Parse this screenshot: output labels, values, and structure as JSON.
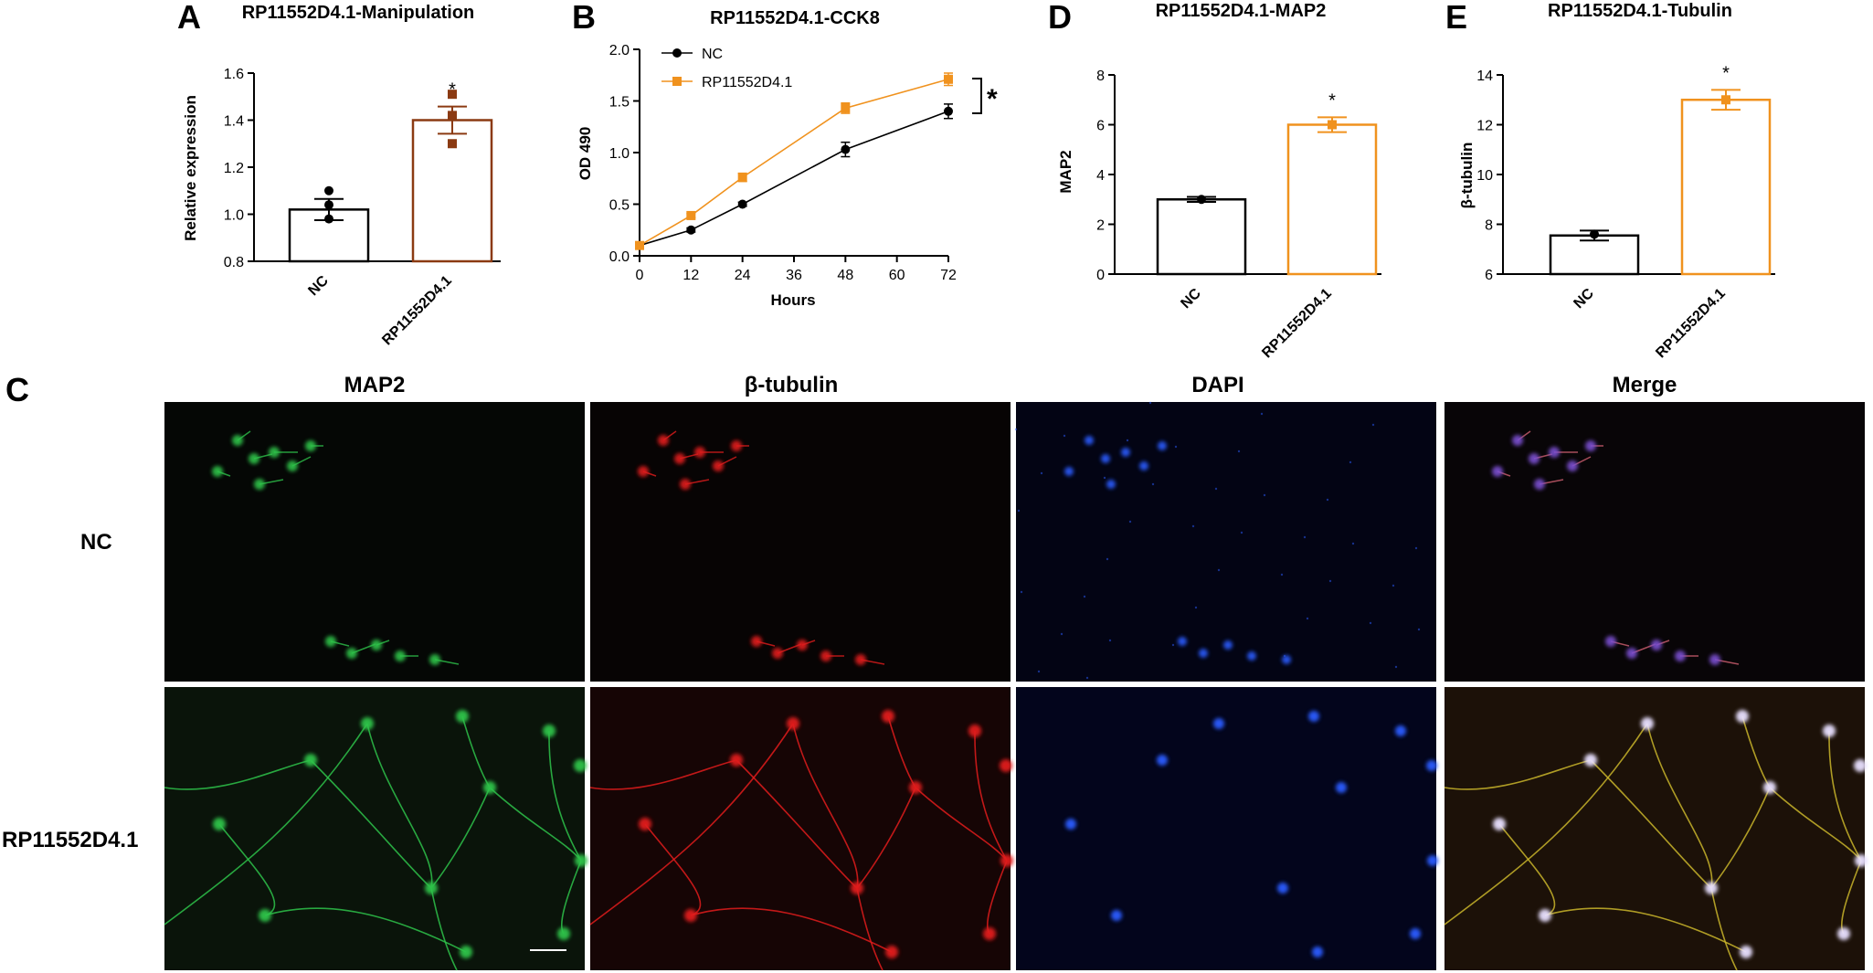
{
  "panel_letters": [
    "A",
    "B",
    "D",
    "E",
    "C"
  ],
  "colors": {
    "nc": "#000000",
    "rp_brown": "#8b3a12",
    "rp_orange": "#f0921e",
    "map2_green": "#2ec24a",
    "tubulin_red": "#e01c1c",
    "dapi_blue": "#2a5cff",
    "merge_yellow": "#c9b52a"
  },
  "chart_data": [
    {
      "id": "A",
      "type": "bar",
      "title": "RP11552D4.1-Manipulation",
      "ylabel": "Relative expression",
      "xlabel": "",
      "categories": [
        "NC",
        "RP11552D4.1"
      ],
      "values": [
        1.02,
        1.4
      ],
      "errors": [
        0.045,
        0.058
      ],
      "points": [
        [
          1.1,
          1.04,
          0.98
        ],
        [
          1.51,
          1.42,
          1.3
        ]
      ],
      "ylim": [
        0.8,
        1.6
      ],
      "yticks": [
        "0.8",
        "1.0",
        "1.2",
        "1.4",
        "1.6"
      ],
      "significance": [
        "",
        "*"
      ]
    },
    {
      "id": "B",
      "type": "line",
      "title": "RP11552D4.1-CCK8",
      "xlabel": "Hours",
      "ylabel": "OD 490",
      "x": [
        0,
        12,
        24,
        48,
        72
      ],
      "xticks": [
        "0",
        "12",
        "24",
        "36",
        "48",
        "60",
        "72"
      ],
      "ylim": [
        0.0,
        2.0
      ],
      "yticks": [
        "0.0",
        "0.5",
        "1.0",
        "1.5",
        "2.0"
      ],
      "legend_position": "top-left",
      "series": [
        {
          "name": "NC",
          "values": [
            0.1,
            0.25,
            0.5,
            1.03,
            1.4
          ],
          "errors": [
            0.01,
            0.02,
            0.02,
            0.07,
            0.07
          ]
        },
        {
          "name": "RP11552D4.1",
          "values": [
            0.1,
            0.39,
            0.76,
            1.43,
            1.71
          ],
          "errors": [
            0.01,
            0.02,
            0.04,
            0.05,
            0.06
          ]
        }
      ],
      "significance": "*"
    },
    {
      "id": "D",
      "type": "bar",
      "title": "RP11552D4.1-MAP2",
      "ylabel": "MAP2",
      "xlabel": "",
      "categories": [
        "NC",
        "RP11552D4.1"
      ],
      "values": [
        3.0,
        6.0
      ],
      "errors": [
        0.1,
        0.3
      ],
      "points": [
        [
          3.0
        ],
        [
          6.0
        ]
      ],
      "ylim": [
        0,
        8
      ],
      "yticks": [
        "0",
        "2",
        "4",
        "6",
        "8"
      ],
      "significance": [
        "",
        "*"
      ]
    },
    {
      "id": "E",
      "type": "bar",
      "title": "RP11552D4.1-Tubulin",
      "ylabel": "β-tubulin",
      "xlabel": "",
      "categories": [
        "NC",
        "RP11552D4.1"
      ],
      "values": [
        7.55,
        13.0
      ],
      "errors": [
        0.2,
        0.4
      ],
      "points": [
        [
          7.6
        ],
        [
          13.0
        ]
      ],
      "ylim": [
        6,
        14
      ],
      "yticks": [
        "6",
        "8",
        "10",
        "12",
        "14"
      ],
      "significance": [
        "",
        "*"
      ]
    }
  ],
  "micrographs": {
    "columns": [
      "MAP2",
      "β-tubulin",
      "DAPI",
      "Merge"
    ],
    "rows": [
      "NC",
      "RP11552D4.1"
    ]
  }
}
